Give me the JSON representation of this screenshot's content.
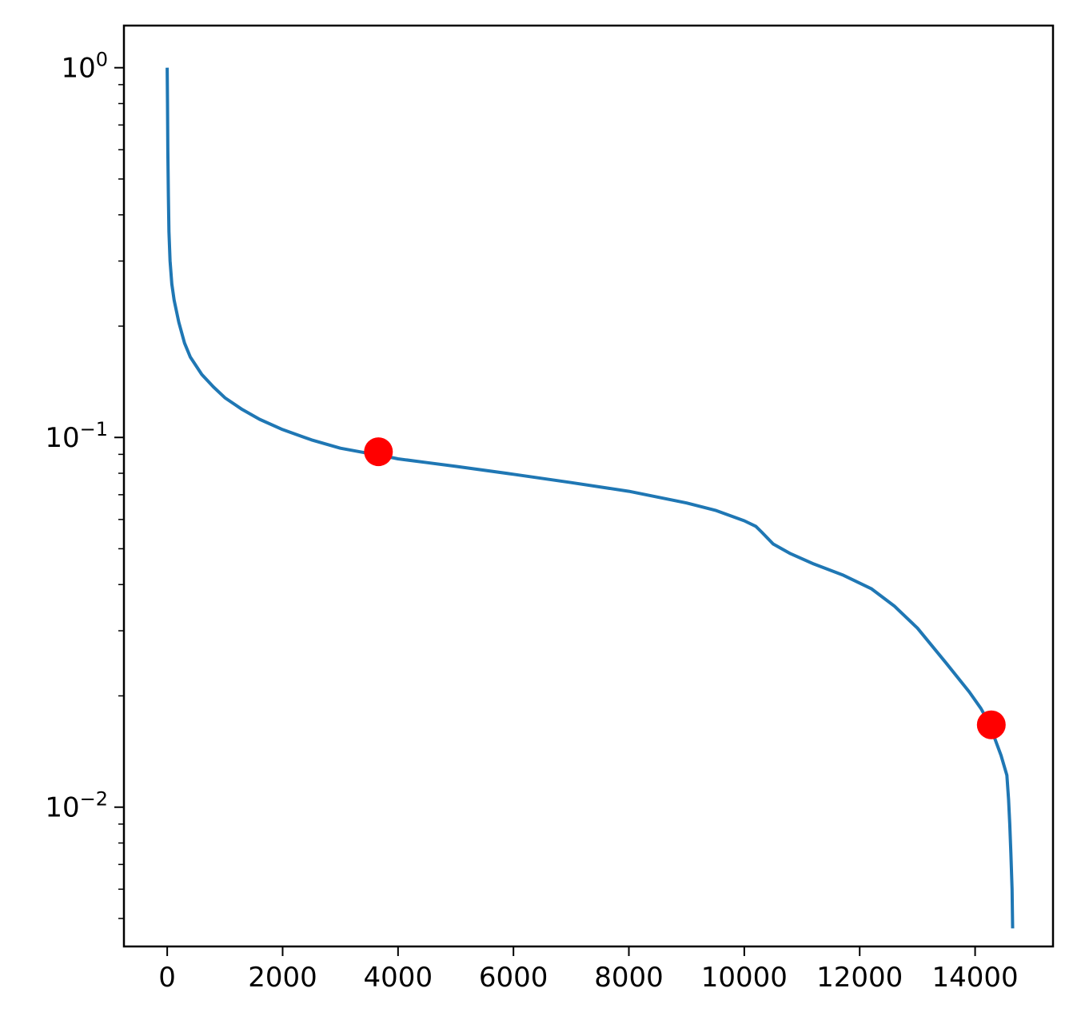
{
  "chart_data": {
    "type": "line",
    "title": "",
    "xlabel": "",
    "ylabel": "",
    "x_scale": "linear",
    "y_scale": "log",
    "xlim": [
      -750,
      15350
    ],
    "ylim": [
      0.0042,
      1.3
    ],
    "grid": false,
    "x_ticks": [
      {
        "value": 0,
        "label": "0"
      },
      {
        "value": 2000,
        "label": "2000"
      },
      {
        "value": 4000,
        "label": "4000"
      },
      {
        "value": 6000,
        "label": "6000"
      },
      {
        "value": 8000,
        "label": "8000"
      },
      {
        "value": 10000,
        "label": "10000"
      },
      {
        "value": 12000,
        "label": "12000"
      },
      {
        "value": 14000,
        "label": "14000"
      }
    ],
    "y_ticks": [
      {
        "value": 1,
        "base": "10",
        "exp": "0"
      },
      {
        "value": 0.1,
        "base": "10",
        "exp": "−1"
      },
      {
        "value": 0.01,
        "base": "10",
        "exp": "−2"
      }
    ],
    "series": [
      {
        "color": "#1f77b4",
        "x": [
          0,
          5,
          10,
          20,
          30,
          50,
          80,
          120,
          200,
          300,
          400,
          600,
          800,
          1000,
          1300,
          1600,
          2000,
          2500,
          3000,
          3500,
          3700,
          4000,
          4500,
          5000,
          6000,
          7000,
          8000,
          9000,
          9500,
          10000,
          10200,
          10300,
          10500,
          10800,
          11200,
          11700,
          12200,
          12600,
          13000,
          13500,
          13900,
          14100,
          14250,
          14350,
          14450,
          14550,
          14580,
          14600,
          14620,
          14640,
          14650
        ],
        "y": [
          1.0,
          0.8,
          0.6,
          0.45,
          0.36,
          0.3,
          0.26,
          0.235,
          0.205,
          0.18,
          0.165,
          0.148,
          0.137,
          0.128,
          0.119,
          0.112,
          0.105,
          0.0985,
          0.0935,
          0.0905,
          0.0895,
          0.0875,
          0.0855,
          0.0835,
          0.0795,
          0.0755,
          0.0715,
          0.0665,
          0.0635,
          0.0595,
          0.0575,
          0.0555,
          0.0515,
          0.0485,
          0.0455,
          0.0425,
          0.039,
          0.035,
          0.0305,
          0.0245,
          0.0205,
          0.0185,
          0.0168,
          0.0152,
          0.0138,
          0.0122,
          0.0105,
          0.009,
          0.0075,
          0.006,
          0.0047
        ]
      }
    ],
    "markers": {
      "color": "#ff0000",
      "points": [
        {
          "x": 3660,
          "y": 0.0915
        },
        {
          "x": 14280,
          "y": 0.0167
        }
      ]
    }
  }
}
